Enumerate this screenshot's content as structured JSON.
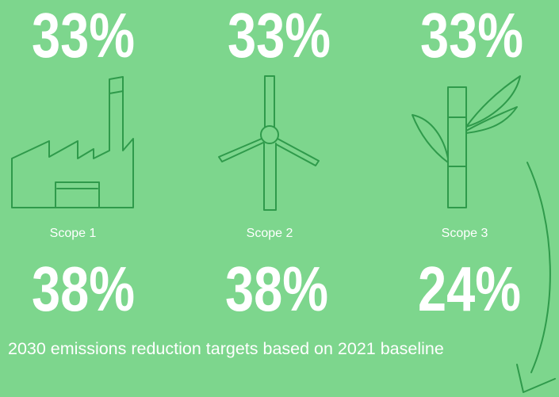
{
  "columns": [
    {
      "top": "33%",
      "label": "Scope 1",
      "bottom": "38%"
    },
    {
      "top": "33%",
      "label": "Scope 2",
      "bottom": "38%"
    },
    {
      "top": "33%",
      "label": "Scope 3",
      "bottom": "24%"
    }
  ],
  "caption": "2030 emissions reduction targets based on 2021 baseline"
}
